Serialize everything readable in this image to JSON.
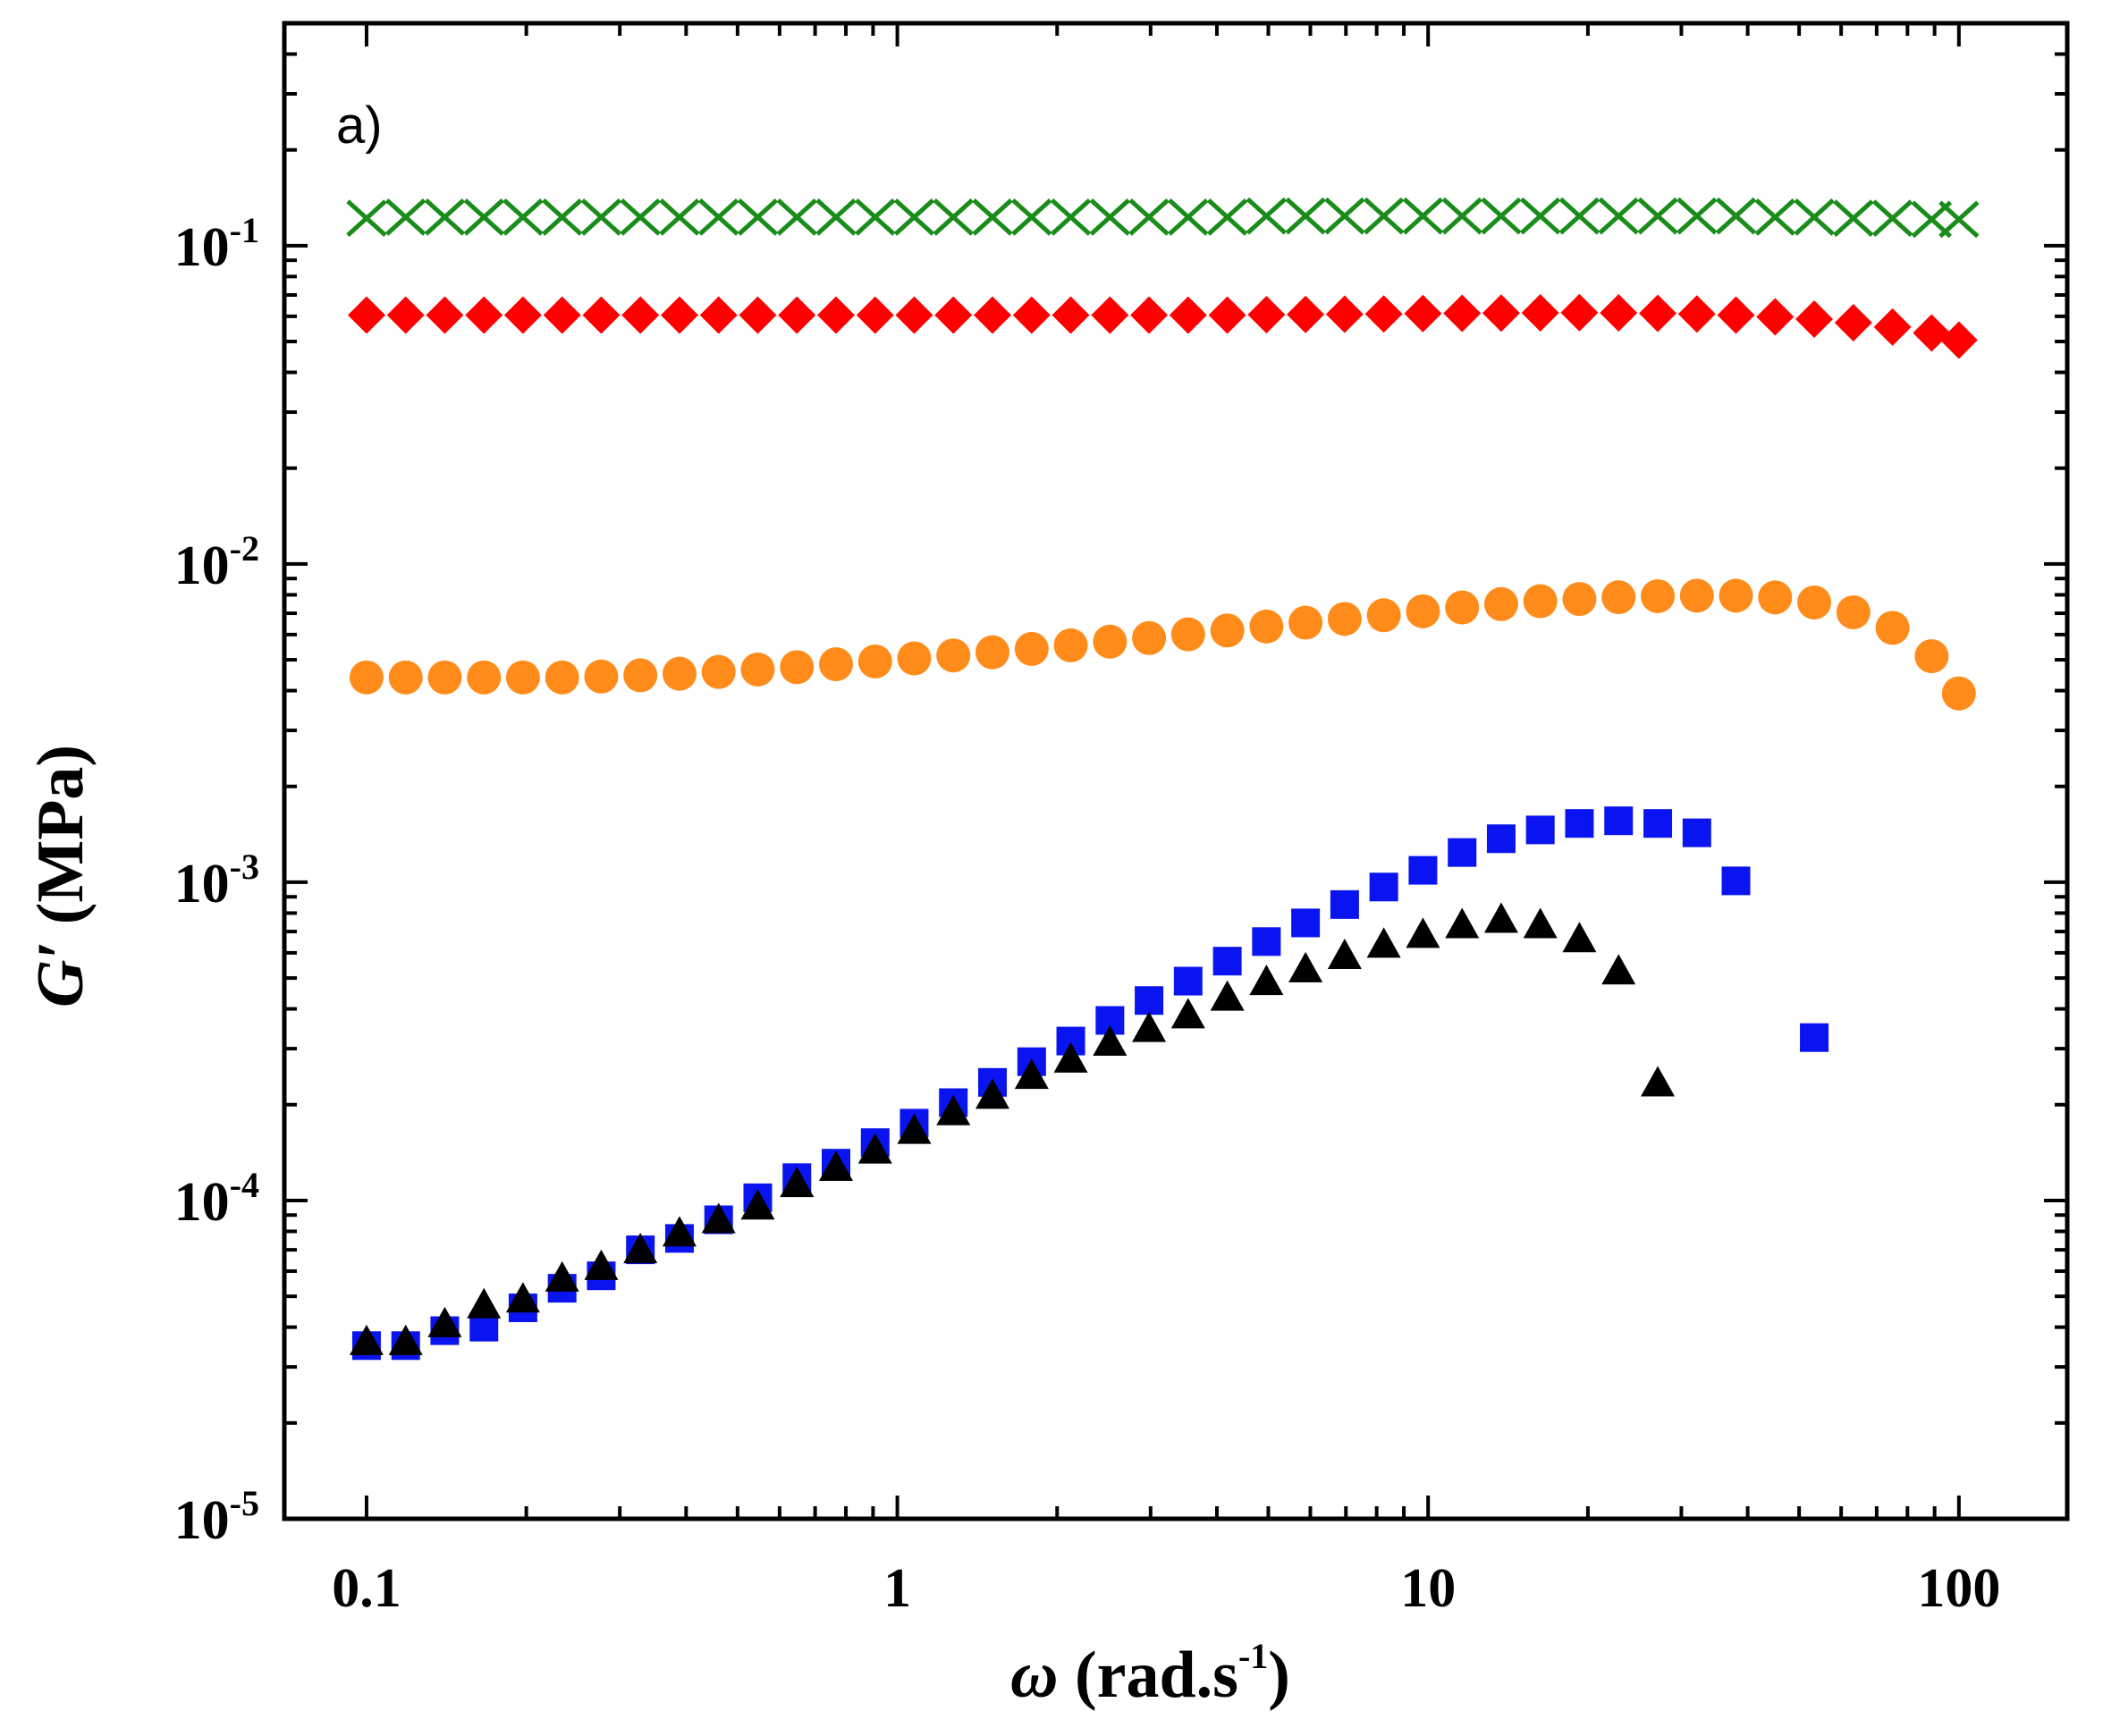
{
  "chart_data": {
    "type": "scatter",
    "panel_label": "a)",
    "xscale": "log",
    "yscale": "log",
    "xlim": [
      0.07,
      160
    ],
    "ylim": [
      1e-05,
      0.5
    ],
    "xlabel": {
      "main": "ω",
      "unit_open": " (rad.s",
      "unit_sup": "-1",
      "unit_close": ")"
    },
    "ylabel": {
      "main": "G′",
      "unit": " (MPa)"
    },
    "x_ticks": [
      {
        "value": 0.1,
        "label": "0.1"
      },
      {
        "value": 1,
        "label": "1"
      },
      {
        "value": 10,
        "label": "10"
      },
      {
        "value": 100,
        "label": "100"
      }
    ],
    "y_ticks": [
      {
        "value": 0.1,
        "base": "10",
        "exp": "-1"
      },
      {
        "value": 0.01,
        "base": "10",
        "exp": "-2"
      },
      {
        "value": 0.001,
        "base": "10",
        "exp": "-3"
      },
      {
        "value": 0.0001,
        "base": "10",
        "exp": "-4"
      },
      {
        "value": 1e-05,
        "base": "10",
        "exp": "-5"
      }
    ],
    "x": [
      0.1,
      0.1185,
      0.1404,
      0.1664,
      0.1971,
      0.2336,
      0.2768,
      0.328,
      0.3887,
      0.4606,
      0.5458,
      0.6468,
      0.7664,
      0.9083,
      1.076,
      1.275,
      1.511,
      1.791,
      2.122,
      2.515,
      2.98,
      3.531,
      4.185,
      4.959,
      5.876,
      6.963,
      8.251,
      9.778,
      11.59,
      13.73,
      16.27,
      19.28,
      22.85,
      27.08,
      32.09,
      38.02,
      45.06,
      53.39,
      63.27,
      74.98,
      88.85,
      100
    ],
    "series": [
      {
        "name": "cross-series",
        "marker": "x",
        "color": "#1a8c1a",
        "values": [
          0.122,
          0.123,
          0.123,
          0.123,
          0.123,
          0.123,
          0.123,
          0.123,
          0.123,
          0.123,
          0.123,
          0.123,
          0.123,
          0.123,
          0.123,
          0.123,
          0.123,
          0.123,
          0.123,
          0.123,
          0.123,
          0.123,
          0.123,
          0.124,
          0.124,
          0.124,
          0.124,
          0.124,
          0.124,
          0.124,
          0.124,
          0.124,
          0.124,
          0.124,
          0.124,
          0.124,
          0.123,
          0.123,
          0.122,
          0.122,
          0.121,
          0.121
        ]
      },
      {
        "name": "diamond-series",
        "marker": "diamond",
        "color": "#ff0000",
        "values": [
          0.0605,
          0.0605,
          0.0605,
          0.0605,
          0.0605,
          0.0605,
          0.0605,
          0.0605,
          0.0605,
          0.0605,
          0.0605,
          0.0605,
          0.0605,
          0.0605,
          0.0605,
          0.0605,
          0.0605,
          0.0605,
          0.0605,
          0.0605,
          0.0605,
          0.0605,
          0.0605,
          0.0607,
          0.0608,
          0.0609,
          0.061,
          0.0612,
          0.0613,
          0.0614,
          0.0615,
          0.0616,
          0.0615,
          0.0613,
          0.061,
          0.0605,
          0.0598,
          0.0588,
          0.0573,
          0.0555,
          0.0532,
          0.0505
        ]
      },
      {
        "name": "circle-series",
        "marker": "circle",
        "color": "#ff8c1a",
        "values": [
          0.0044,
          0.0044,
          0.0044,
          0.0044,
          0.0044,
          0.0044,
          0.00443,
          0.00447,
          0.00452,
          0.00458,
          0.00466,
          0.00474,
          0.00484,
          0.00494,
          0.00505,
          0.00516,
          0.00528,
          0.00541,
          0.00555,
          0.0057,
          0.00585,
          0.00601,
          0.00618,
          0.00636,
          0.00654,
          0.00672,
          0.0069,
          0.0071,
          0.0073,
          0.00748,
          0.00764,
          0.00776,
          0.00786,
          0.00792,
          0.00795,
          0.00795,
          0.00785,
          0.00757,
          0.00705,
          0.0063,
          0.00513,
          0.00392
        ]
      },
      {
        "name": "square-series",
        "marker": "square",
        "color": "#0a14f0",
        "values": [
          3.5e-05,
          3.5e-05,
          3.9e-05,
          4e-05,
          4.6e-05,
          5.3e-05,
          5.8e-05,
          7e-05,
          7.6e-05,
          8.7e-05,
          0.000102,
          0.000118,
          0.000131,
          0.000152,
          0.000175,
          0.000203,
          0.000235,
          0.000273,
          0.000317,
          0.000368,
          0.000425,
          0.000489,
          0.000565,
          0.000651,
          0.000745,
          0.000851,
          0.000966,
          0.00109,
          0.00124,
          0.00137,
          0.00146,
          0.00153,
          0.00156,
          0.00153,
          0.00143,
          0.00101,
          0.000325
        ],
        "x_indices": [
          0,
          1,
          2,
          3,
          4,
          5,
          6,
          7,
          8,
          9,
          10,
          11,
          12,
          13,
          14,
          15,
          16,
          17,
          18,
          19,
          20,
          21,
          22,
          23,
          24,
          25,
          26,
          27,
          28,
          29,
          30,
          31,
          32,
          33,
          34,
          35,
          37
        ]
      },
      {
        "name": "triangle-series",
        "marker": "triangle",
        "color": "#000000",
        "values": [
          3.6e-05,
          3.6e-05,
          4.1e-05,
          4.7e-05,
          4.9e-05,
          5.7e-05,
          6.2e-05,
          7e-05,
          7.9e-05,
          8.7e-05,
          9.6e-05,
          0.000113,
          0.000127,
          0.000144,
          0.000166,
          0.00019,
          0.000214,
          0.000247,
          0.000278,
          0.000314,
          0.000347,
          0.000383,
          0.000435,
          0.000487,
          0.000534,
          0.000588,
          0.000638,
          0.000685,
          0.000735,
          0.000764,
          0.000735,
          0.000664,
          0.000526,
          0.000234
        ],
        "x_indices": [
          0,
          1,
          2,
          3,
          4,
          5,
          6,
          7,
          8,
          9,
          10,
          11,
          12,
          13,
          14,
          15,
          16,
          17,
          18,
          19,
          20,
          21,
          22,
          23,
          24,
          25,
          26,
          27,
          28,
          29,
          30,
          31,
          32,
          33
        ]
      }
    ]
  }
}
